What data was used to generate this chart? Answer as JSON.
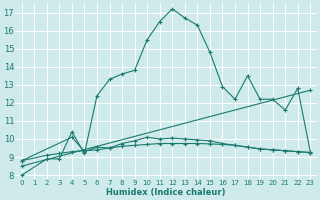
{
  "xlabel": "Humidex (Indice chaleur)",
  "xlim": [
    -0.5,
    23.5
  ],
  "ylim": [
    7.8,
    17.5
  ],
  "yticks": [
    8,
    9,
    10,
    11,
    12,
    13,
    14,
    15,
    16,
    17
  ],
  "xticks": [
    0,
    1,
    2,
    3,
    4,
    5,
    6,
    7,
    8,
    9,
    10,
    11,
    12,
    13,
    14,
    15,
    16,
    17,
    18,
    19,
    20,
    21,
    22,
    23
  ],
  "bg_color": "#ceeaea",
  "grid_color": "#b8d8d8",
  "line_color": "#1a7a6e",
  "line1_x": [
    0,
    2,
    3,
    4,
    5,
    6,
    7,
    8,
    9,
    10,
    11,
    12,
    13,
    14,
    15,
    16,
    17,
    18,
    19,
    20,
    21,
    22,
    23
  ],
  "line1_y": [
    8.0,
    8.9,
    8.9,
    10.4,
    9.2,
    12.4,
    13.3,
    13.6,
    13.8,
    15.5,
    16.5,
    17.2,
    16.7,
    16.3,
    14.8,
    12.9,
    12.2,
    13.5,
    12.2,
    12.2,
    11.6,
    12.8,
    9.3
  ],
  "line2_x": [
    0,
    2,
    3,
    4,
    5,
    6,
    7,
    8,
    9,
    10,
    11,
    12,
    13,
    14,
    15,
    16,
    17,
    18,
    19,
    20,
    21,
    22,
    23
  ],
  "line2_y": [
    8.8,
    9.1,
    9.2,
    9.3,
    9.35,
    9.4,
    9.5,
    9.6,
    9.65,
    9.7,
    9.75,
    9.75,
    9.75,
    9.75,
    9.73,
    9.7,
    9.65,
    9.55,
    9.45,
    9.4,
    9.35,
    9.3,
    9.25
  ],
  "line3_x": [
    0,
    23
  ],
  "line3_y": [
    8.5,
    12.7
  ],
  "line4_x": [
    0,
    4,
    5,
    6,
    7,
    8,
    9,
    10,
    11,
    12,
    13,
    14,
    15,
    16,
    17,
    18,
    19,
    20,
    21,
    22,
    23
  ],
  "line4_y": [
    8.8,
    10.1,
    9.3,
    9.55,
    9.5,
    9.75,
    9.9,
    10.1,
    10.0,
    10.05,
    10.0,
    9.95,
    9.9,
    9.75,
    9.65,
    9.55,
    9.45,
    9.4,
    9.35,
    9.3,
    9.25
  ]
}
